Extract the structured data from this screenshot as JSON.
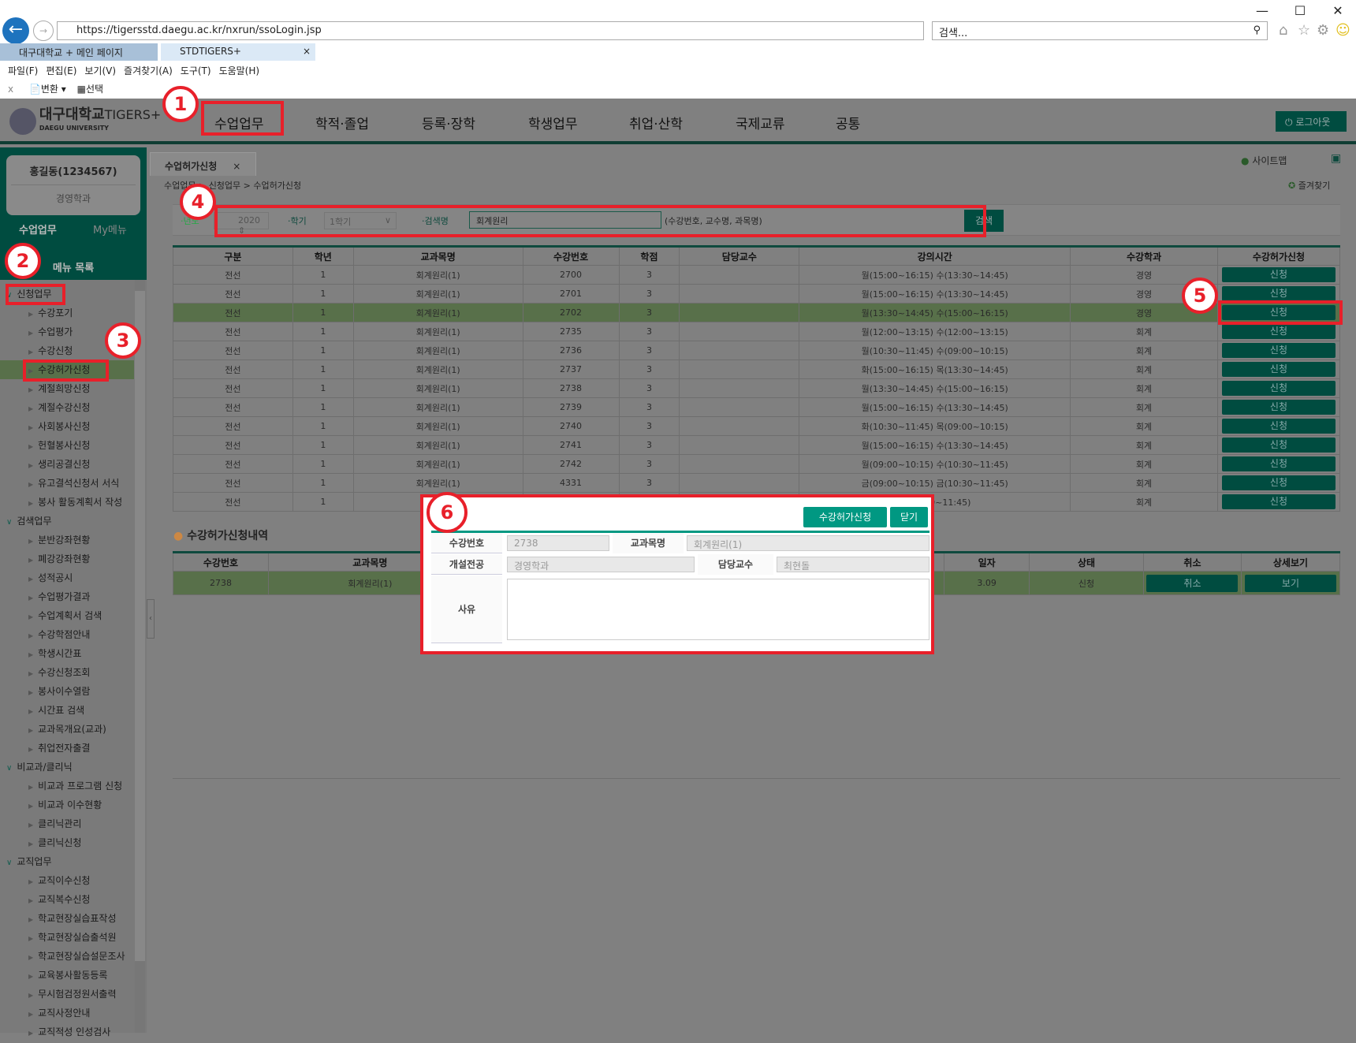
{
  "browser": {
    "url": "https://tigersstd.daegu.ac.kr/nxrun/ssoLogin.jsp",
    "search_placeholder": "검색...",
    "tabs": [
      {
        "label": "대구대학교 + 메인 페이지"
      },
      {
        "label": "STDTIGERS+"
      }
    ],
    "menu": [
      "파일(F)",
      "편집(E)",
      "보기(V)",
      "즐겨찾기(A)",
      "도구(T)",
      "도움말(H)"
    ],
    "toolbar": {
      "convert": "변환",
      "select": "선택"
    }
  },
  "app": {
    "logo_main": "대구대학교",
    "logo_sub": "DAEGU UNIVERSITY",
    "logo_brand": "TIGERS+",
    "nav": [
      "수업업무",
      "학적·졸업",
      "등록·장학",
      "학생업무",
      "취업·산학",
      "국제교류",
      "공통"
    ],
    "logout": "로그아웃"
  },
  "sidebar": {
    "user": "홍길동(1234567)",
    "dept": "경영학과",
    "tabs": [
      "수업업무",
      "My메뉴"
    ],
    "menu_title": "메뉴 목록",
    "groups": [
      {
        "label": "신청업무",
        "items": [
          "수강포기",
          "수업평가",
          "수강신청",
          "수강허가신청",
          "계절희망신청",
          "계절수강신청",
          "사회봉사신청",
          "헌혈봉사신청",
          "생리공결신청",
          "유고결석신청서 서식",
          "봉사 활동계획서 작성"
        ]
      },
      {
        "label": "검색업무",
        "items": [
          "분반강좌현황",
          "폐강강좌현황",
          "성적공시",
          "수업평가결과",
          "수업계획서 검색",
          "수강학점안내",
          "학생시간표",
          "수강신청조회",
          "봉사이수열람",
          "시간표 검색",
          "교과목개요(교과)",
          "취업전자출결"
        ]
      },
      {
        "label": "비교과/클리닉",
        "items": [
          "비교과 프로그램 신청",
          "비교과 이수현황",
          "클리닉관리",
          "클리닉신청"
        ]
      },
      {
        "label": "교직업무",
        "items": [
          "교직이수신청",
          "교직복수신청",
          "학교현장실습표작성",
          "학교현장실습출석원",
          "학교현장실습설문조사",
          "교육봉사활동등록",
          "무시험검정원서출력",
          "교직사정안내",
          "교직적성 인성검사"
        ]
      }
    ],
    "selected": "수강허가신청"
  },
  "content": {
    "tab": "수업허가신청",
    "sitemap": "사이트맵",
    "favorites": "즐겨찾기",
    "breadcrumb": "수업업무 > 신청업무 > 수업허가신청",
    "search": {
      "year_label": "·년도",
      "year": "2020",
      "term_label": "·학기",
      "term": "1학기",
      "keyword_label": "·검색명",
      "keyword": "회계원리",
      "hint": "(수강번호, 교수명, 과목명)",
      "button": "검색"
    },
    "table": {
      "headers": [
        "구분",
        "학년",
        "교과목명",
        "수강번호",
        "학점",
        "담당교수",
        "강의시간",
        "수강학과",
        "수강허가신청"
      ],
      "button": "신청",
      "rows": [
        [
          "전선",
          "1",
          "회계원리(1)",
          "2700",
          "3",
          "",
          "월(15:00~16:15) 수(13:30~14:45)",
          "경영"
        ],
        [
          "전선",
          "1",
          "회계원리(1)",
          "2701",
          "3",
          "",
          "월(15:00~16:15) 수(13:30~14:45)",
          "경영"
        ],
        [
          "전선",
          "1",
          "회계원리(1)",
          "2702",
          "3",
          "",
          "월(13:30~14:45) 수(15:00~16:15)",
          "경영"
        ],
        [
          "전선",
          "1",
          "회계원리(1)",
          "2735",
          "3",
          "",
          "월(12:00~13:15) 수(12:00~13:15)",
          "회계"
        ],
        [
          "전선",
          "1",
          "회계원리(1)",
          "2736",
          "3",
          "",
          "월(10:30~11:45) 수(09:00~10:15)",
          "회계"
        ],
        [
          "전선",
          "1",
          "회계원리(1)",
          "2737",
          "3",
          "",
          "화(15:00~16:15) 목(13:30~14:45)",
          "회계"
        ],
        [
          "전선",
          "1",
          "회계원리(1)",
          "2738",
          "3",
          "",
          "월(13:30~14:45) 수(15:00~16:15)",
          "회계"
        ],
        [
          "전선",
          "1",
          "회계원리(1)",
          "2739",
          "3",
          "",
          "월(15:00~16:15) 수(13:30~14:45)",
          "회계"
        ],
        [
          "전선",
          "1",
          "회계원리(1)",
          "2740",
          "3",
          "",
          "화(10:30~11:45) 목(09:00~10:15)",
          "회계"
        ],
        [
          "전선",
          "1",
          "회계원리(1)",
          "2741",
          "3",
          "",
          "월(15:00~16:15) 수(13:30~14:45)",
          "회계"
        ],
        [
          "전선",
          "1",
          "회계원리(1)",
          "2742",
          "3",
          "",
          "월(09:00~10:15) 수(10:30~11:45)",
          "회계"
        ],
        [
          "전선",
          "1",
          "회계원리(1)",
          "4331",
          "3",
          "",
          "금(09:00~10:15) 금(10:30~11:45)",
          "회계"
        ],
        [
          "전선",
          "1",
          "회",
          "",
          "",
          "",
          "목(10:30~11:45)",
          "회계"
        ]
      ]
    },
    "history": {
      "title": "수강허가신청내역",
      "headers": [
        "수강번호",
        "교과목명",
        "",
        "",
        "일자",
        "상태",
        "취소",
        "상세보기"
      ],
      "row": [
        "2738",
        "회계원리(1)",
        "",
        "",
        "3.09",
        "신청"
      ],
      "cancel": "취소",
      "view": "보기"
    }
  },
  "modal": {
    "apply": "수강허가신청",
    "close": "닫기",
    "labels": {
      "course_no": "수강번호",
      "course_name": "교과목명",
      "dept": "개설전공",
      "professor": "담당교수",
      "reason": "사유"
    },
    "values": {
      "course_no": "2738",
      "course_name": "회계원리(1)",
      "dept": "경영학과",
      "professor": "최현돌",
      "reason": ""
    }
  },
  "annotations": [
    "1",
    "2",
    "3",
    "4",
    "5",
    "6"
  ],
  "colors": {
    "accent": "#004c40",
    "modal_button": "#009882",
    "annotation": "#e8202a",
    "selected_row": "#58704a"
  }
}
